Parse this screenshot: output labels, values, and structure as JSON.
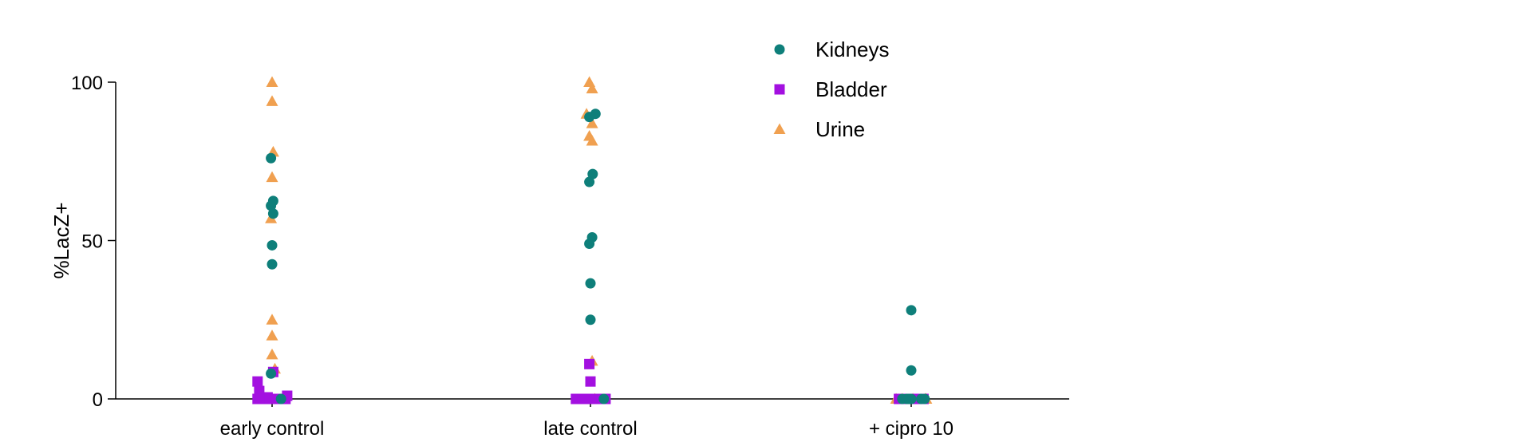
{
  "chart_data": {
    "type": "scatter",
    "ylabel": "%LacZ+",
    "xlabel": "",
    "ylim": [
      0,
      100
    ],
    "yticks": [
      0,
      50,
      100
    ],
    "categories": [
      "early control",
      "late control",
      "+ cipro 10"
    ],
    "legend_position": "top-center",
    "series": [
      {
        "name": "Kidneys",
        "marker": "circle",
        "color": "#0e7f7a",
        "points": [
          {
            "category": "early control",
            "offset": -0.1,
            "y": 76
          },
          {
            "category": "early control",
            "offset": -0.1,
            "y": 61
          },
          {
            "category": "early control",
            "offset": 0.1,
            "y": 62.5
          },
          {
            "category": "early control",
            "offset": 0.1,
            "y": 58.5
          },
          {
            "category": "early control",
            "offset": 0.0,
            "y": 48.5
          },
          {
            "category": "early control",
            "offset": 0.0,
            "y": 42.5
          },
          {
            "category": "early control",
            "offset": -0.1,
            "y": 8
          },
          {
            "category": "early control",
            "offset": 0.8,
            "y": 0
          },
          {
            "category": "late control",
            "offset": -0.1,
            "y": 89
          },
          {
            "category": "late control",
            "offset": 0.45,
            "y": 90
          },
          {
            "category": "late control",
            "offset": 0.2,
            "y": 71
          },
          {
            "category": "late control",
            "offset": -0.1,
            "y": 68.5
          },
          {
            "category": "late control",
            "offset": 0.15,
            "y": 51
          },
          {
            "category": "late control",
            "offset": -0.1,
            "y": 49
          },
          {
            "category": "late control",
            "offset": 0.0,
            "y": 36.5
          },
          {
            "category": "late control",
            "offset": 0.0,
            "y": 25
          },
          {
            "category": "late control",
            "offset": 1.2,
            "y": 0
          },
          {
            "category": "+ cipro 10",
            "offset": 0.0,
            "y": 28
          },
          {
            "category": "+ cipro 10",
            "offset": 0.0,
            "y": 9
          },
          {
            "category": "+ cipro 10",
            "offset": -0.8,
            "y": 0
          },
          {
            "category": "+ cipro 10",
            "offset": -0.4,
            "y": 0
          },
          {
            "category": "+ cipro 10",
            "offset": -0.2,
            "y": 0
          },
          {
            "category": "+ cipro 10",
            "offset": 0.0,
            "y": 0
          },
          {
            "category": "+ cipro 10",
            "offset": 0.9,
            "y": 0
          },
          {
            "category": "+ cipro 10",
            "offset": 1.2,
            "y": 0
          }
        ]
      },
      {
        "name": "Bladder",
        "marker": "square",
        "color": "#a310e0",
        "points": [
          {
            "category": "early control",
            "offset": -1.3,
            "y": 5.5
          },
          {
            "category": "early control",
            "offset": -1.15,
            "y": 2.5
          },
          {
            "category": "early control",
            "offset": -1.3,
            "y": 0
          },
          {
            "category": "early control",
            "offset": -1.0,
            "y": 0
          },
          {
            "category": "early control",
            "offset": -0.8,
            "y": 0.5
          },
          {
            "category": "early control",
            "offset": -0.6,
            "y": 0
          },
          {
            "category": "early control",
            "offset": -0.4,
            "y": 0.5
          },
          {
            "category": "early control",
            "offset": -0.2,
            "y": 0
          },
          {
            "category": "early control",
            "offset": 0.1,
            "y": 8.5
          },
          {
            "category": "early control",
            "offset": 0.1,
            "y": 0
          },
          {
            "category": "early control",
            "offset": 0.3,
            "y": 0
          },
          {
            "category": "early control",
            "offset": 0.5,
            "y": 0
          },
          {
            "category": "early control",
            "offset": 0.7,
            "y": 0
          },
          {
            "category": "early control",
            "offset": 1.2,
            "y": 0
          },
          {
            "category": "early control",
            "offset": 1.35,
            "y": 1
          },
          {
            "category": "late control",
            "offset": -1.3,
            "y": 0
          },
          {
            "category": "late control",
            "offset": -1.1,
            "y": 0
          },
          {
            "category": "late control",
            "offset": -0.9,
            "y": 0
          },
          {
            "category": "late control",
            "offset": -0.7,
            "y": 0
          },
          {
            "category": "late control",
            "offset": -0.5,
            "y": 0
          },
          {
            "category": "late control",
            "offset": -0.3,
            "y": 0
          },
          {
            "category": "late control",
            "offset": -0.1,
            "y": 11
          },
          {
            "category": "late control",
            "offset": 0.0,
            "y": 5.5
          },
          {
            "category": "late control",
            "offset": -0.1,
            "y": 0
          },
          {
            "category": "late control",
            "offset": 0.1,
            "y": 0
          },
          {
            "category": "late control",
            "offset": 0.5,
            "y": 0
          },
          {
            "category": "late control",
            "offset": 0.7,
            "y": 0
          },
          {
            "category": "late control",
            "offset": 0.9,
            "y": 0
          },
          {
            "category": "late control",
            "offset": 1.35,
            "y": 0
          },
          {
            "category": "+ cipro 10",
            "offset": -1.1,
            "y": 0
          },
          {
            "category": "+ cipro 10",
            "offset": -1.0,
            "y": 0
          },
          {
            "category": "+ cipro 10",
            "offset": -0.6,
            "y": 0
          },
          {
            "category": "+ cipro 10",
            "offset": -0.3,
            "y": 0
          },
          {
            "category": "+ cipro 10",
            "offset": -0.1,
            "y": 0
          },
          {
            "category": "+ cipro 10",
            "offset": 0.1,
            "y": 0
          },
          {
            "category": "+ cipro 10",
            "offset": 0.3,
            "y": 0
          },
          {
            "category": "+ cipro 10",
            "offset": 0.5,
            "y": 0
          },
          {
            "category": "+ cipro 10",
            "offset": 0.7,
            "y": 0
          },
          {
            "category": "+ cipro 10",
            "offset": 1.0,
            "y": 0
          },
          {
            "category": "+ cipro 10",
            "offset": 1.1,
            "y": 0
          }
        ]
      },
      {
        "name": "Urine",
        "marker": "triangle",
        "color": "#f0a050",
        "points": [
          {
            "category": "early control",
            "offset": 0.0,
            "y": 100
          },
          {
            "category": "early control",
            "offset": 0.0,
            "y": 94
          },
          {
            "category": "early control",
            "offset": 0.1,
            "y": 78
          },
          {
            "category": "early control",
            "offset": 0.0,
            "y": 70
          },
          {
            "category": "early control",
            "offset": -0.1,
            "y": 57
          },
          {
            "category": "early control",
            "offset": 0.0,
            "y": 25
          },
          {
            "category": "early control",
            "offset": 0.0,
            "y": 20
          },
          {
            "category": "early control",
            "offset": 0.0,
            "y": 14
          },
          {
            "category": "early control",
            "offset": 0.25,
            "y": 9.5
          },
          {
            "category": "early control",
            "offset": -0.1,
            "y": 0
          },
          {
            "category": "early control",
            "offset": 0.95,
            "y": 0
          },
          {
            "category": "late control",
            "offset": -0.1,
            "y": 100
          },
          {
            "category": "late control",
            "offset": 0.15,
            "y": 98
          },
          {
            "category": "late control",
            "offset": -0.35,
            "y": 90
          },
          {
            "category": "late control",
            "offset": 0.15,
            "y": 87
          },
          {
            "category": "late control",
            "offset": -0.1,
            "y": 83
          },
          {
            "category": "late control",
            "offset": 0.15,
            "y": 81.5
          },
          {
            "category": "late control",
            "offset": 0.15,
            "y": 12
          },
          {
            "category": "late control",
            "offset": 0.4,
            "y": 0
          },
          {
            "category": "+ cipro 10",
            "offset": -1.35,
            "y": 0
          },
          {
            "category": "+ cipro 10",
            "offset": -0.8,
            "y": 0
          },
          {
            "category": "+ cipro 10",
            "offset": 0.15,
            "y": 0
          },
          {
            "category": "+ cipro 10",
            "offset": 1.25,
            "y": 0
          },
          {
            "category": "+ cipro 10",
            "offset": 1.35,
            "y": 0
          }
        ]
      }
    ]
  }
}
